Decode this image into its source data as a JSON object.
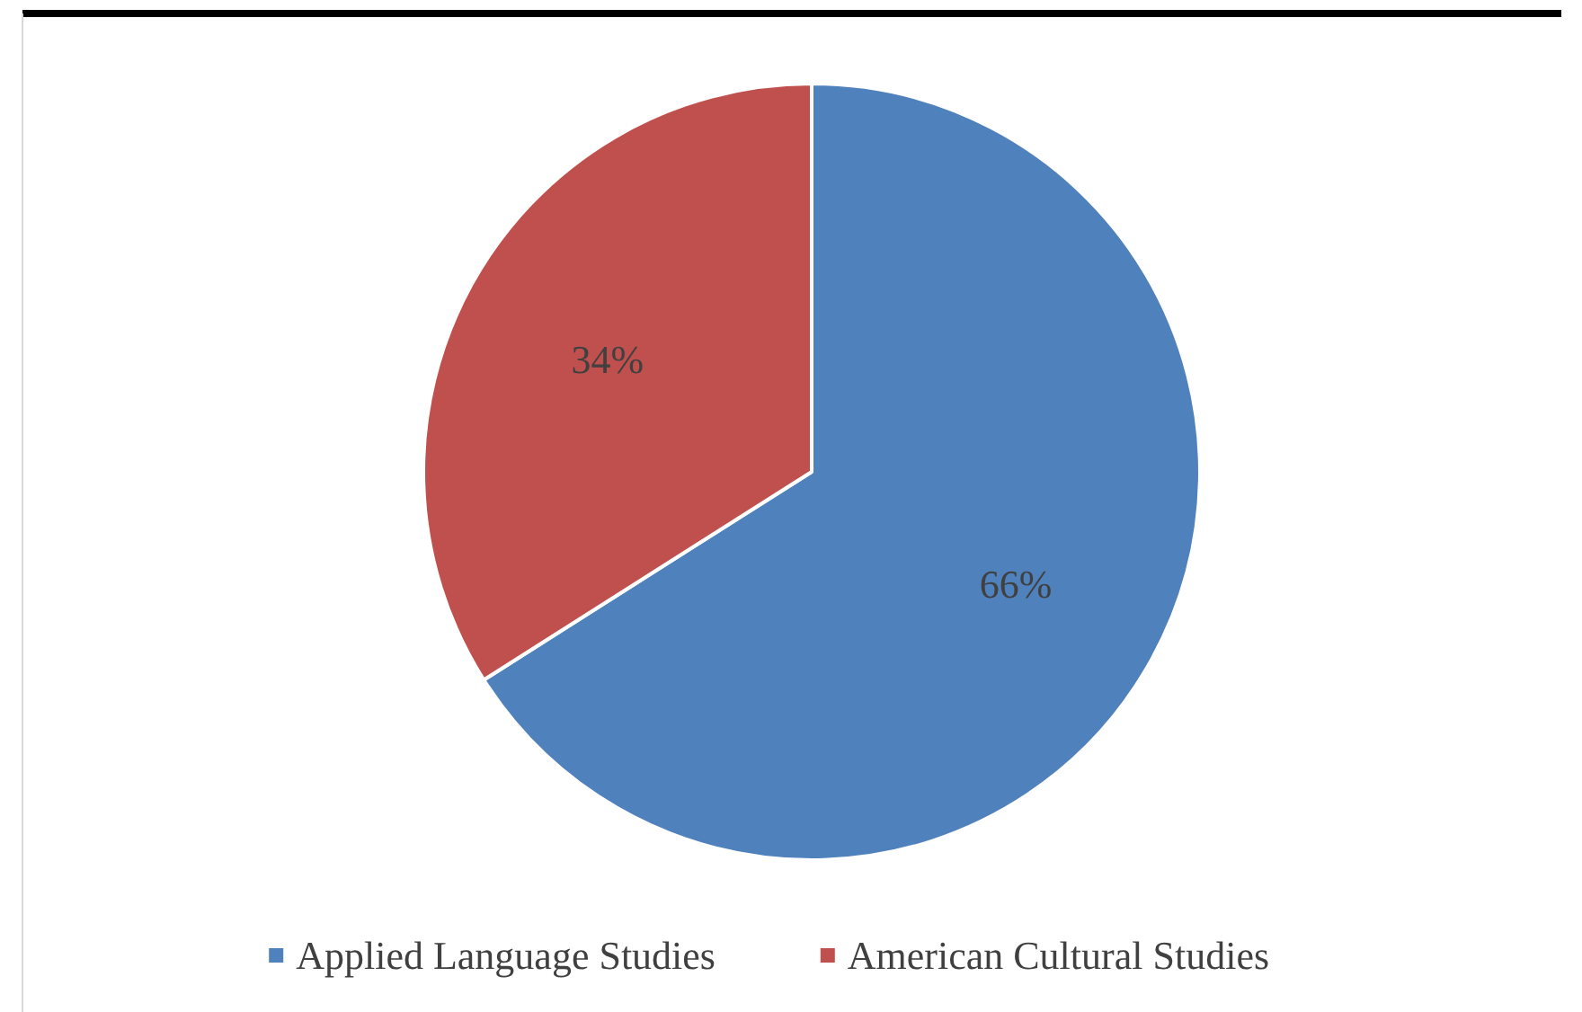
{
  "chart_data": {
    "type": "pie",
    "categories": [
      "Applied Language Studies",
      "American Cultural Studies"
    ],
    "values": [
      66,
      34
    ],
    "colors": [
      "#4f81bd",
      "#c0504d"
    ],
    "value_labels": [
      "66%",
      "34%"
    ],
    "legend": "bottom"
  }
}
